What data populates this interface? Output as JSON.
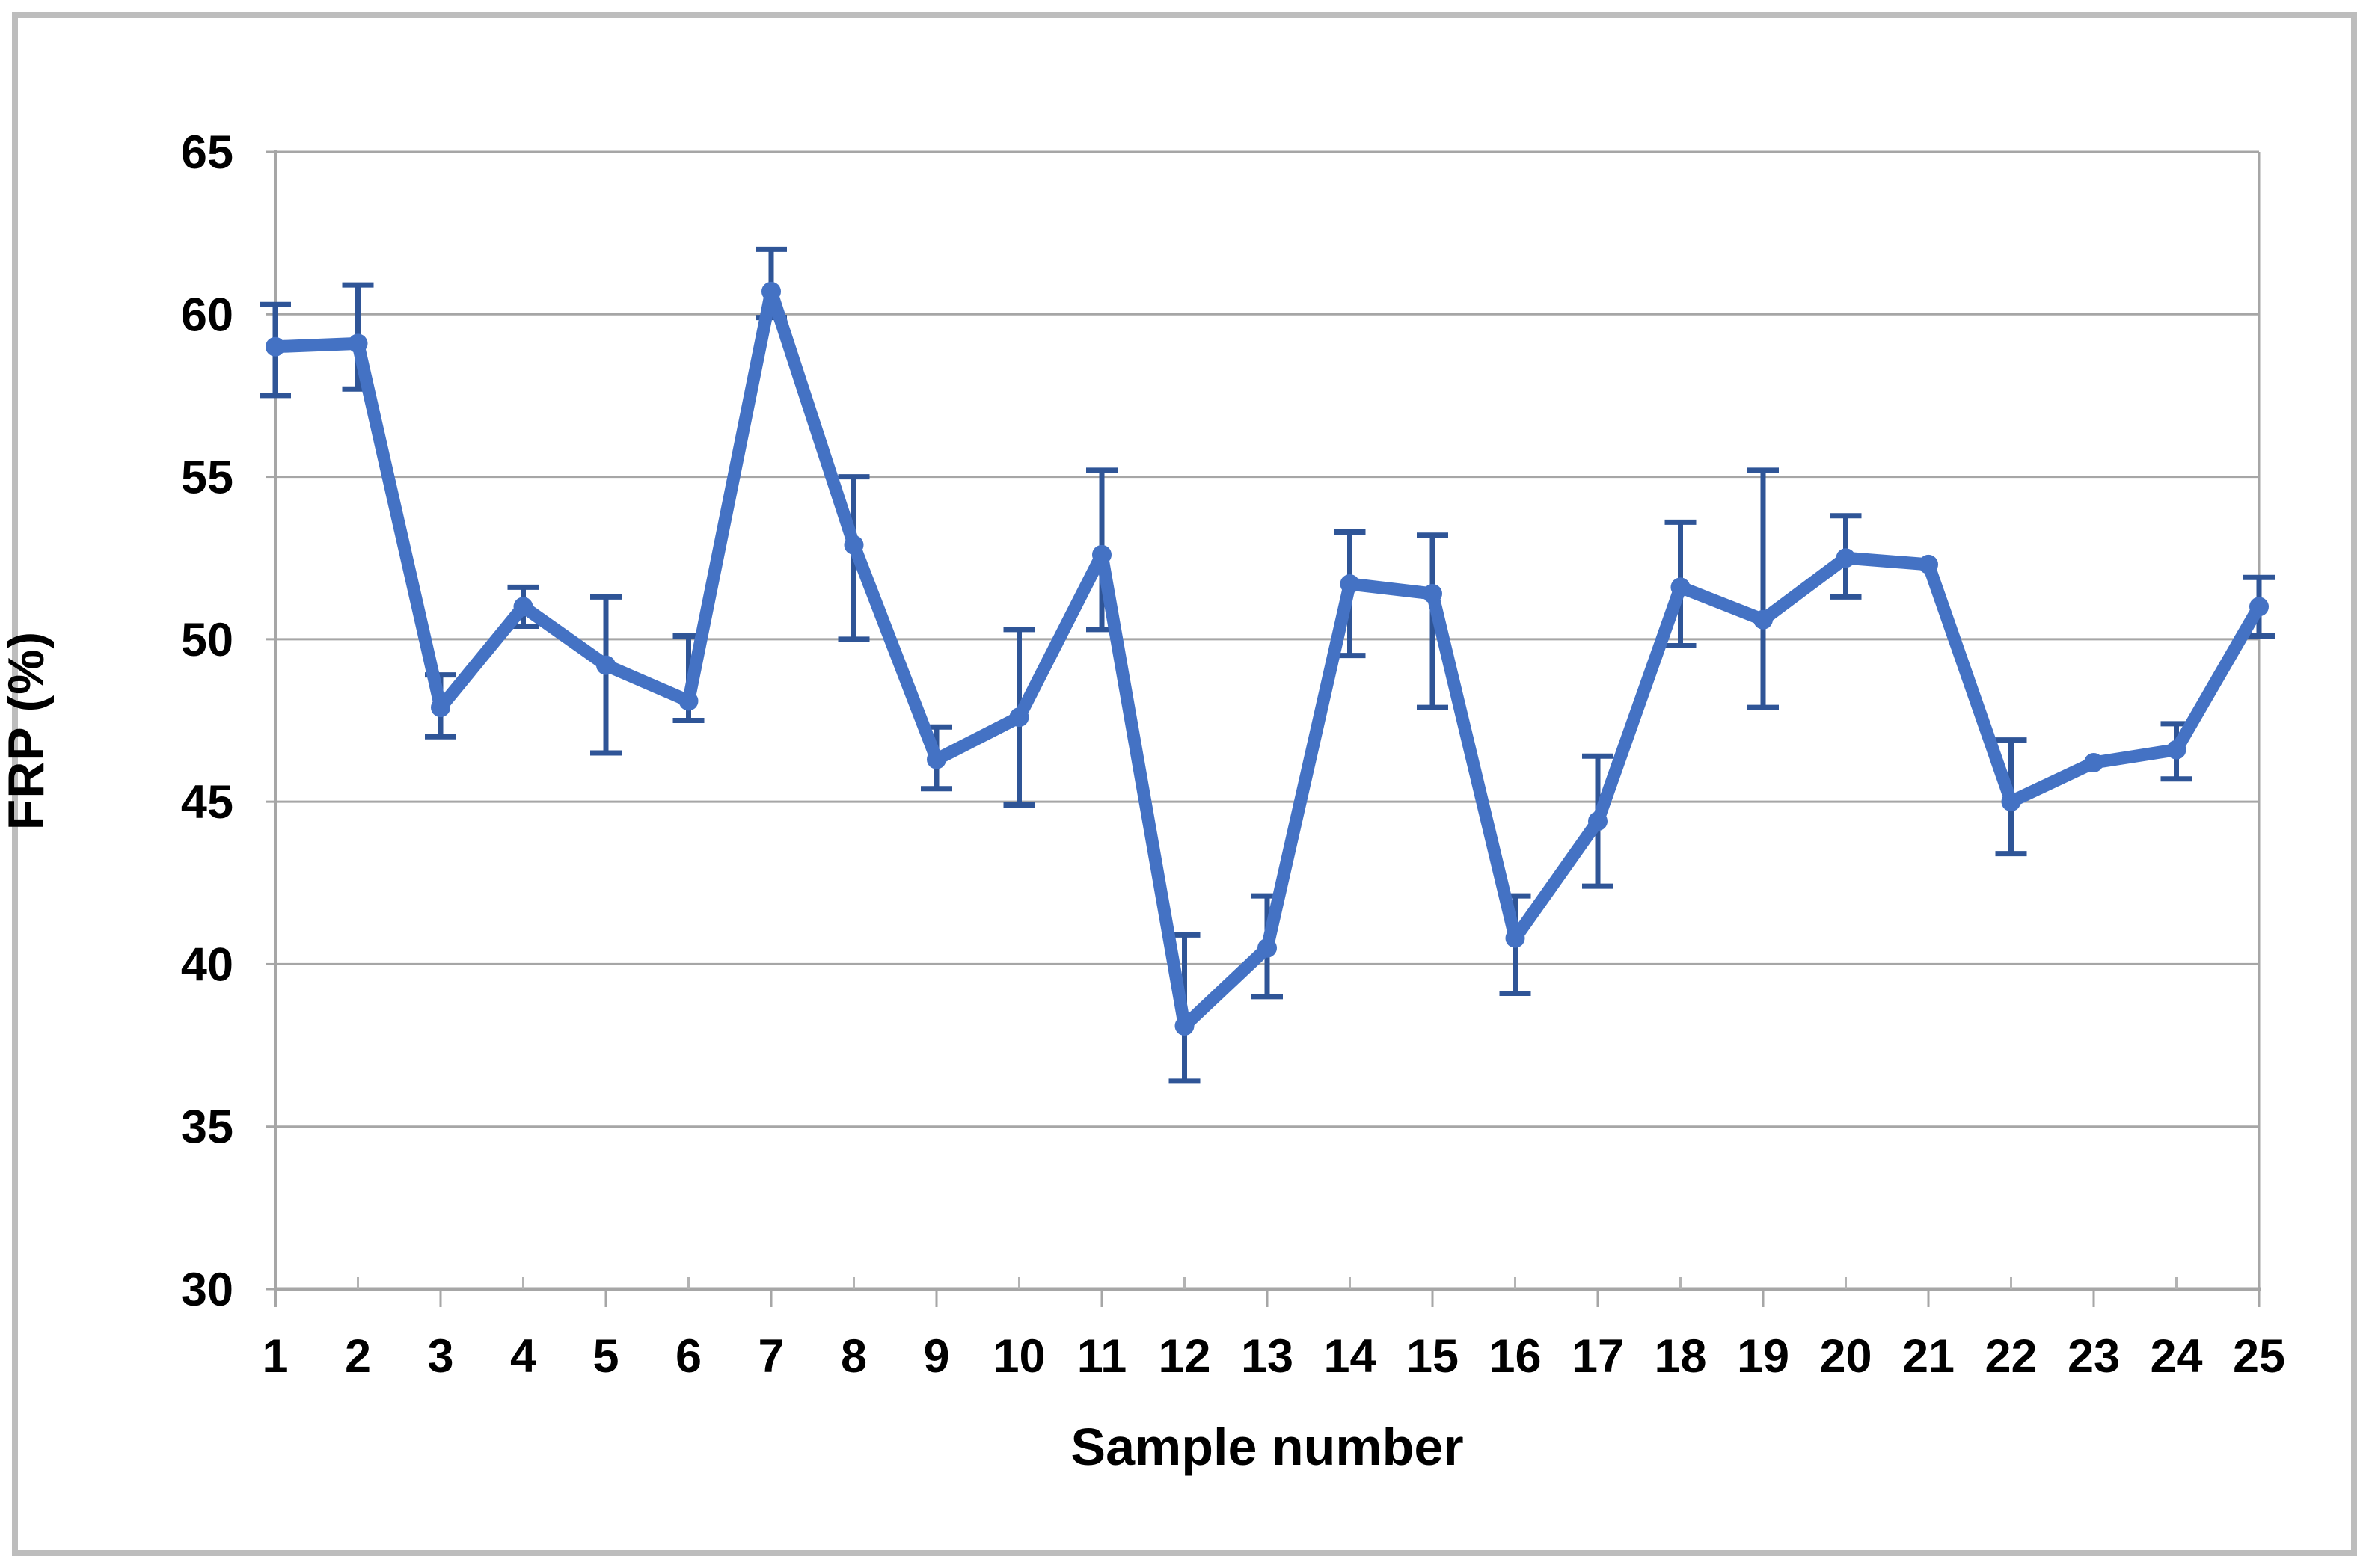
{
  "chart_data": {
    "type": "line",
    "title": "",
    "xlabel": "Sample number",
    "ylabel": "FRP (%)",
    "x_tick_labels": [
      "1",
      "2",
      "3",
      "4",
      "5",
      "6",
      "7",
      "8",
      "9",
      "10",
      "11",
      "12",
      "13",
      "14",
      "15",
      "16",
      "17",
      "18",
      "19",
      "20",
      "21",
      "22",
      "23",
      "24",
      "25"
    ],
    "y_tick_labels": [
      "30",
      "35",
      "40",
      "45",
      "50",
      "55",
      "60",
      "65"
    ],
    "ylim": [
      30,
      65
    ],
    "ytick_step": 5,
    "grid": "horizontal-on",
    "legend": "none",
    "series": [
      {
        "name": "FRP",
        "x": [
          1,
          2,
          3,
          4,
          5,
          6,
          7,
          8,
          9,
          10,
          11,
          12,
          13,
          14,
          15,
          16,
          17,
          18,
          19,
          20,
          21,
          22,
          23,
          24,
          25
        ],
        "values": [
          59.0,
          59.1,
          47.9,
          51.0,
          49.2,
          48.1,
          60.7,
          52.9,
          46.3,
          47.6,
          52.6,
          38.1,
          40.5,
          51.7,
          51.4,
          40.8,
          44.4,
          51.6,
          50.6,
          52.5,
          52.3,
          45.0,
          46.2,
          46.6,
          51.0
        ],
        "error_upper_cap": [
          60.3,
          60.9,
          48.9,
          51.6,
          51.3,
          50.1,
          62.0,
          55.0,
          47.3,
          50.3,
          55.2,
          40.9,
          42.1,
          53.3,
          53.2,
          42.1,
          46.4,
          53.6,
          55.2,
          53.8,
          null,
          46.9,
          null,
          47.4,
          51.9
        ],
        "error_lower_cap": [
          57.5,
          57.7,
          47.0,
          50.4,
          46.5,
          47.5,
          59.9,
          50.0,
          45.4,
          44.9,
          50.3,
          36.4,
          39.0,
          49.5,
          47.9,
          39.1,
          42.4,
          49.8,
          47.9,
          51.3,
          null,
          43.4,
          null,
          45.7,
          50.1
        ]
      }
    ],
    "colors": {
      "line": "#4472c4",
      "marker": "#4472c4",
      "error_bar": "#2f5597",
      "gridline": "#a6a6a6",
      "axis": "#a6a6a6",
      "tick_minor": "#b3b3b3",
      "text": "#000000",
      "frame_border": "#bdbdbd"
    }
  }
}
